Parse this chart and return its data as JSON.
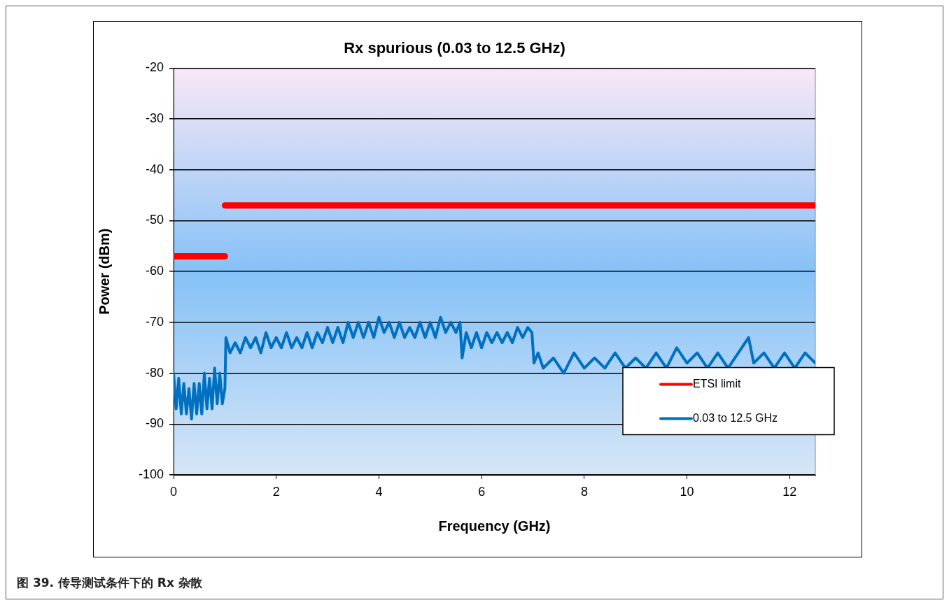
{
  "chart_data": {
    "type": "line",
    "title": "Rx spurious (0.03 to 12.5 GHz)",
    "xlabel": "Frequency (GHz)",
    "ylabel": "Power (dBm)",
    "xlim": [
      0,
      12.5
    ],
    "xticks": [
      0,
      2,
      4,
      6,
      8,
      10,
      12
    ],
    "ylim": [
      -100,
      -20
    ],
    "yticks": [
      -100,
      -90,
      -80,
      -70,
      -60,
      -50,
      -40,
      -30,
      -20
    ],
    "grid": "y",
    "legend": "bottom right",
    "marker": "none",
    "line_style": "solid",
    "annotations": [
      "图 39. 传导测试条件下的 Rx 杂散"
    ],
    "series": [
      {
        "name": "ETSI limit",
        "color": "#ff0000",
        "x": [
          0.03,
          1
        ],
        "values": [
          -57,
          -57
        ]
      },
      {
        "color": "#ff0000",
        "x": [
          1,
          12.5
        ],
        "values": [
          -47,
          -47
        ]
      },
      {
        "name": "0.03 to 12.5 GHz",
        "color": "#0070c0",
        "x": [
          0,
          0.05,
          0.1,
          0.15,
          0.2,
          0.25,
          0.3,
          0.35,
          0.4,
          0.45,
          0.5,
          0.55,
          0.6,
          0.65,
          0.7,
          0.75,
          0.8,
          0.85,
          0.9,
          0.95,
          1.0,
          1.02,
          1.1,
          1.2,
          1.3,
          1.4,
          1.5,
          1.6,
          1.7,
          1.8,
          1.9,
          2.0,
          2.1,
          2.2,
          2.3,
          2.4,
          2.5,
          2.6,
          2.7,
          2.8,
          2.9,
          3.0,
          3.1,
          3.2,
          3.3,
          3.4,
          3.5,
          3.6,
          3.7,
          3.8,
          3.9,
          4.0,
          4.1,
          4.2,
          4.3,
          4.4,
          4.5,
          4.6,
          4.7,
          4.8,
          4.9,
          5.0,
          5.1,
          5.2,
          5.3,
          5.4,
          5.5,
          5.58,
          5.62,
          5.7,
          5.8,
          5.9,
          6.0,
          6.1,
          6.2,
          6.3,
          6.4,
          6.5,
          6.6,
          6.7,
          6.8,
          6.9,
          6.98,
          7.02,
          7.1,
          7.2,
          7.4,
          7.6,
          7.8,
          8.0,
          8.2,
          8.4,
          8.6,
          8.8,
          9.0,
          9.2,
          9.4,
          9.6,
          9.8,
          10.0,
          10.2,
          10.4,
          10.6,
          10.8,
          11.0,
          11.2,
          11.3,
          11.5,
          11.7,
          11.9,
          12.1,
          12.3,
          12.5
        ],
        "values": [
          -80,
          -87,
          -81,
          -88,
          -82,
          -88,
          -83,
          -89,
          -82,
          -88,
          -82,
          -88,
          -80,
          -87,
          -81,
          -87,
          -79,
          -86,
          -80,
          -86,
          -83,
          -73,
          -76,
          -74,
          -76,
          -73,
          -75,
          -73,
          -76,
          -72,
          -75,
          -73,
          -75,
          -72,
          -75,
          -73,
          -75,
          -72,
          -75,
          -72,
          -74,
          -71,
          -74,
          -71,
          -74,
          -70,
          -73,
          -70,
          -73,
          -70,
          -73,
          -69,
          -72,
          -70,
          -73,
          -70,
          -73,
          -71,
          -73,
          -70,
          -73,
          -70,
          -73,
          -69,
          -72,
          -70,
          -72,
          -70,
          -77,
          -72,
          -75,
          -72,
          -75,
          -72,
          -74,
          -72,
          -74,
          -72,
          -74,
          -71,
          -73,
          -71,
          -72,
          -78,
          -76,
          -79,
          -77,
          -80,
          -76,
          -79,
          -77,
          -79,
          -76,
          -79,
          -77,
          -79,
          -76,
          -79,
          -75,
          -78,
          -76,
          -79,
          -76,
          -79,
          -76,
          -73,
          -78,
          -76,
          -79,
          -76,
          -79,
          -76,
          -78
        ]
      }
    ]
  }
}
